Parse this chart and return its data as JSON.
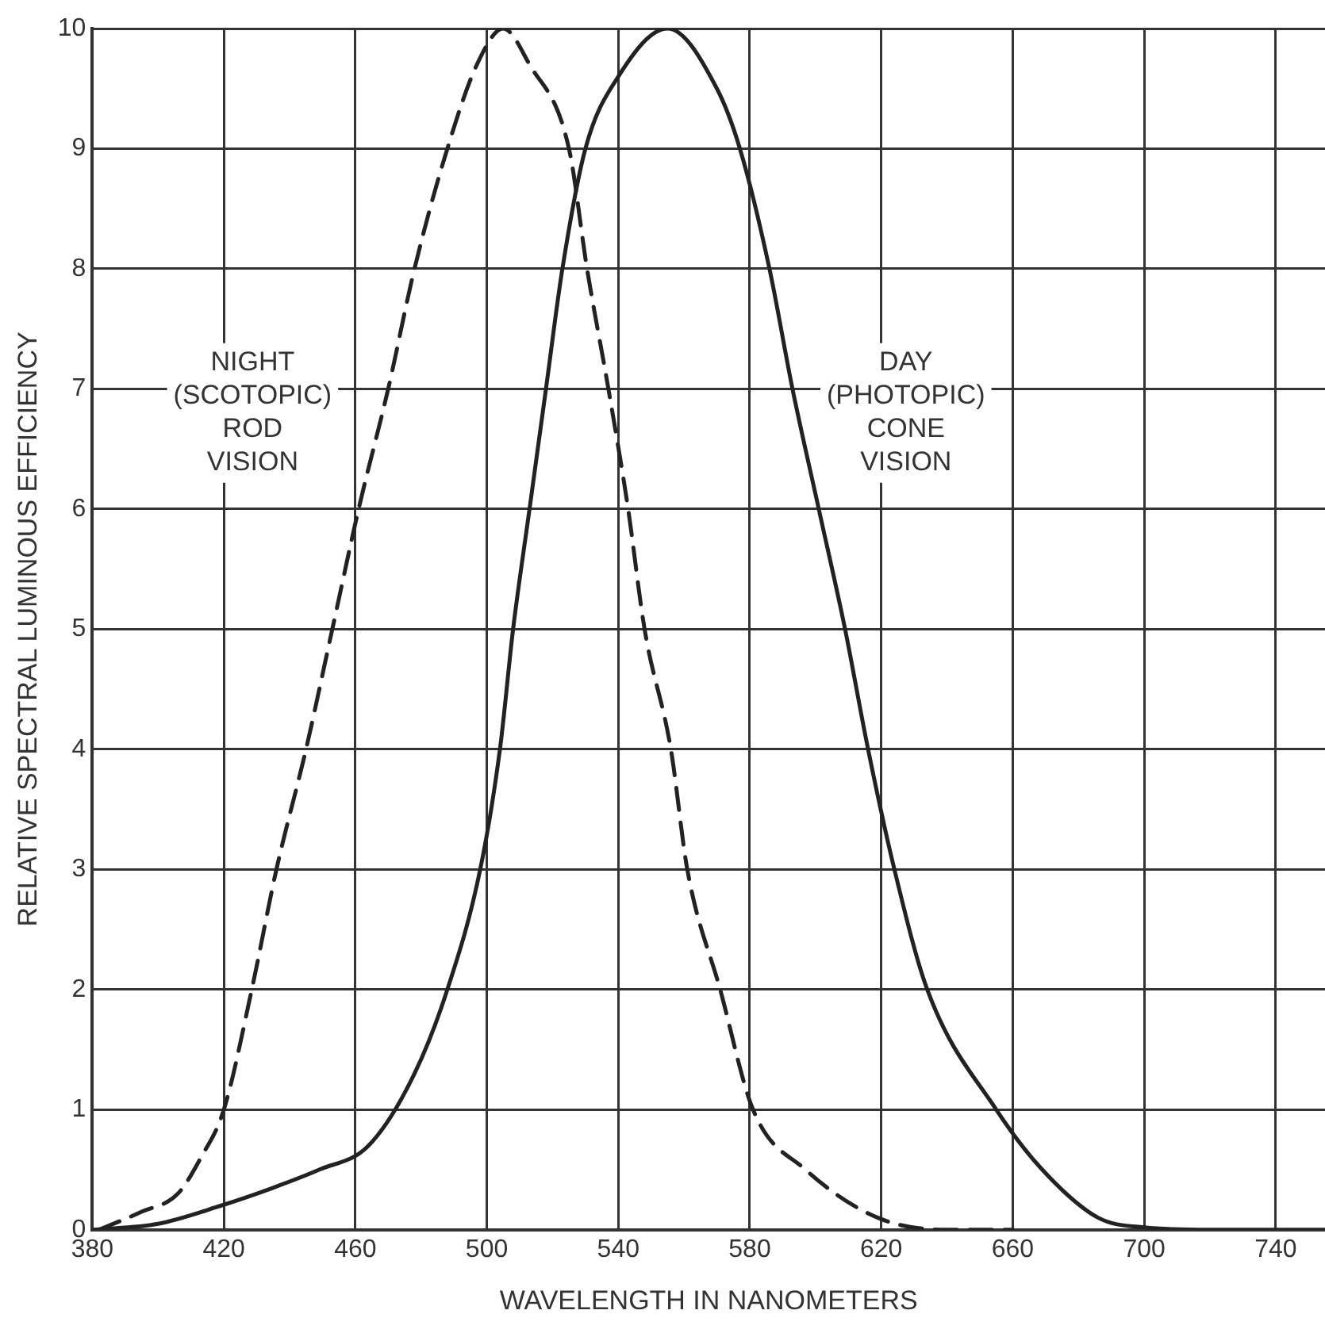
{
  "chart_data": {
    "type": "line",
    "xlabel": "WAVELENGTH IN NANOMETERS",
    "ylabel": "RELATIVE SPECTRAL LUMINOUS EFFICIENCY",
    "xlim": [
      380,
      755
    ],
    "ylim": [
      0,
      10
    ],
    "xticks": [
      380,
      420,
      460,
      500,
      540,
      580,
      620,
      660,
      700,
      740
    ],
    "yticks": [
      0,
      1,
      2,
      3,
      4,
      5,
      6,
      7,
      8,
      9,
      10
    ],
    "grid": true,
    "legend": false,
    "marker": "none",
    "series": [
      {
        "color": "#222222",
        "line_style": "dashed",
        "x": [
          382,
          395,
          406,
          413,
          420,
          428.5,
          436,
          445,
          453,
          461,
          470,
          478,
          488,
          497,
          505,
          513,
          525,
          530.5,
          537,
          543,
          548,
          556,
          561,
          571,
          581,
          597,
          619,
          640,
          660
        ],
        "values": [
          0,
          0.15,
          0.3,
          0.6,
          1,
          2,
          3,
          4,
          5,
          6,
          7,
          8,
          9,
          9.7,
          10,
          9.7,
          9,
          8,
          7,
          6,
          5,
          4,
          3,
          2,
          1,
          0.5,
          0.1,
          0,
          0
        ]
      },
      {
        "color": "#222222",
        "line_style": "solid",
        "x": [
          380,
          400,
          419,
          435,
          449,
          464,
          478,
          488,
          498,
          504,
          508,
          513,
          518,
          523,
          530,
          540,
          555,
          570,
          577,
          586,
          593,
          601,
          609,
          616,
          624,
          634,
          655,
          669,
          686,
          700,
          720,
          755
        ],
        "values": [
          0,
          0.05,
          0.2,
          0.35,
          0.5,
          0.7,
          1.3,
          2,
          3,
          4,
          5,
          6,
          7,
          8,
          9,
          9.6,
          10,
          9.5,
          9,
          8,
          7,
          6,
          5,
          4,
          3,
          2,
          1,
          0.5,
          0.1,
          0.02,
          0,
          0
        ]
      }
    ],
    "annotations": [
      "NIGHT\n(SCOTOPIC)\nROD\nVISION",
      "DAY\n(PHOTOPIC)\nCONE\nVISION"
    ]
  }
}
